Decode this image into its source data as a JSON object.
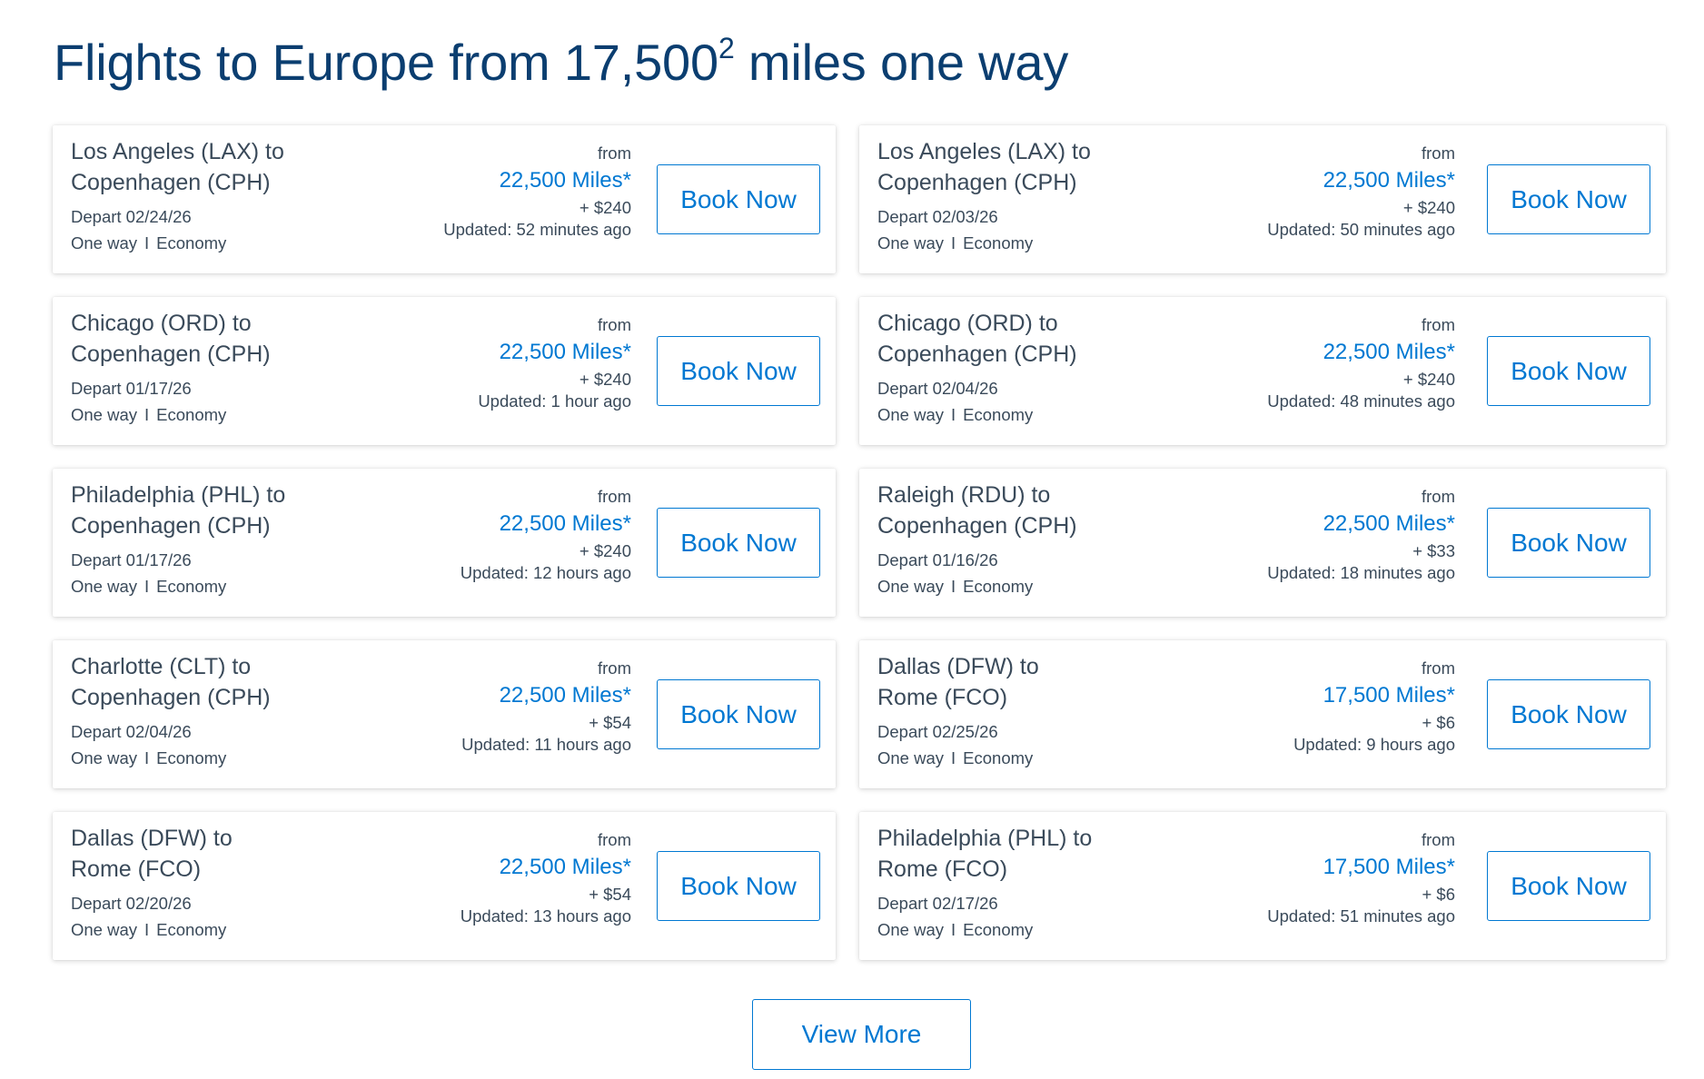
{
  "header": {
    "title_main": "Flights to Europe from 17,500",
    "title_footnote": "2",
    "title_suffix": " miles one way"
  },
  "deals": [
    {
      "route_line1": "Los Angeles (LAX) to",
      "route_line2": "Copenhagen (CPH)",
      "depart": "Depart 02/24/26",
      "trip_type": "One way",
      "separator": "I",
      "cabin": "Economy",
      "from_label": "from",
      "miles": "22,500 Miles*",
      "fee": "+ $240",
      "updated": "Updated: 52 minutes ago",
      "button_label": "Book Now"
    },
    {
      "route_line1": "Los Angeles (LAX) to",
      "route_line2": "Copenhagen (CPH)",
      "depart": "Depart 02/03/26",
      "trip_type": "One way",
      "separator": "I",
      "cabin": "Economy",
      "from_label": "from",
      "miles": "22,500 Miles*",
      "fee": "+ $240",
      "updated": "Updated: 50 minutes ago",
      "button_label": "Book Now"
    },
    {
      "route_line1": "Chicago (ORD) to",
      "route_line2": "Copenhagen (CPH)",
      "depart": "Depart 01/17/26",
      "trip_type": "One way",
      "separator": "I",
      "cabin": "Economy",
      "from_label": "from",
      "miles": "22,500 Miles*",
      "fee": "+ $240",
      "updated": "Updated: 1 hour ago",
      "button_label": "Book Now"
    },
    {
      "route_line1": "Chicago (ORD) to",
      "route_line2": "Copenhagen (CPH)",
      "depart": "Depart 02/04/26",
      "trip_type": "One way",
      "separator": "I",
      "cabin": "Economy",
      "from_label": "from",
      "miles": "22,500 Miles*",
      "fee": "+ $240",
      "updated": "Updated: 48 minutes ago",
      "button_label": "Book Now"
    },
    {
      "route_line1": "Philadelphia (PHL) to",
      "route_line2": "Copenhagen (CPH)",
      "depart": "Depart 01/17/26",
      "trip_type": "One way",
      "separator": "I",
      "cabin": "Economy",
      "from_label": "from",
      "miles": "22,500 Miles*",
      "fee": "+ $240",
      "updated": "Updated: 12 hours ago",
      "button_label": "Book Now"
    },
    {
      "route_line1": "Raleigh (RDU) to",
      "route_line2": "Copenhagen (CPH)",
      "depart": "Depart 01/16/26",
      "trip_type": "One way",
      "separator": "I",
      "cabin": "Economy",
      "from_label": "from",
      "miles": "22,500 Miles*",
      "fee": "+ $33",
      "updated": "Updated: 18 minutes ago",
      "button_label": "Book Now"
    },
    {
      "route_line1": "Charlotte (CLT) to",
      "route_line2": "Copenhagen (CPH)",
      "depart": "Depart 02/04/26",
      "trip_type": "One way",
      "separator": "I",
      "cabin": "Economy",
      "from_label": "from",
      "miles": "22,500 Miles*",
      "fee": "+ $54",
      "updated": "Updated: 11 hours ago",
      "button_label": "Book Now"
    },
    {
      "route_line1": "Dallas (DFW) to",
      "route_line2": "Rome (FCO)",
      "depart": "Depart 02/25/26",
      "trip_type": "One way",
      "separator": "I",
      "cabin": "Economy",
      "from_label": "from",
      "miles": "17,500 Miles*",
      "fee": "+ $6",
      "updated": "Updated: 9 hours ago",
      "button_label": "Book Now"
    },
    {
      "route_line1": "Dallas (DFW) to",
      "route_line2": "Rome (FCO)",
      "depart": "Depart 02/20/26",
      "trip_type": "One way",
      "separator": "I",
      "cabin": "Economy",
      "from_label": "from",
      "miles": "22,500 Miles*",
      "fee": "+ $54",
      "updated": "Updated: 13 hours ago",
      "button_label": "Book Now"
    },
    {
      "route_line1": "Philadelphia (PHL) to",
      "route_line2": "Rome (FCO)",
      "depart": "Depart 02/17/26",
      "trip_type": "One way",
      "separator": "I",
      "cabin": "Economy",
      "from_label": "from",
      "miles": "17,500 Miles*",
      "fee": "+ $6",
      "updated": "Updated: 51 minutes ago",
      "button_label": "Book Now"
    }
  ],
  "footer": {
    "view_more_label": "View More"
  },
  "colors": {
    "title": "#0b3e70",
    "accent": "#0078d2",
    "text": "#3a4a5a"
  }
}
